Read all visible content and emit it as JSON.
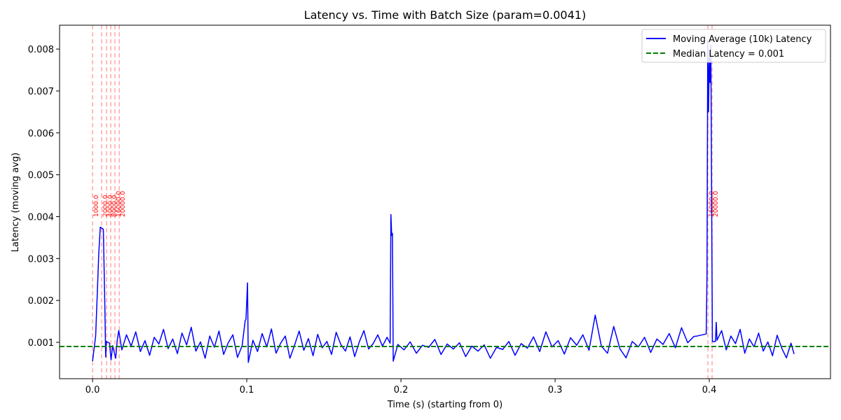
{
  "chart_data": {
    "type": "line",
    "title": "Latency vs. Time with Batch Size (param=0.0041)",
    "xlabel": "Time (s) (starting from 0)",
    "ylabel": "Latency (moving avg)",
    "xlim": [
      -0.0214,
      0.4786
    ],
    "ylim": [
      0.000132,
      0.00857
    ],
    "xticks": [
      {
        "value": 0,
        "label": "0.0"
      },
      0.1,
      0.2,
      0.3,
      0.4
    ],
    "yticks": [
      0.001,
      0.002,
      0.003,
      0.004,
      0.005,
      0.006,
      0.007,
      0.008
    ],
    "legend": "upper right",
    "x": [
      0,
      0.002,
      0.003,
      0.004,
      0.005,
      0.007,
      0.008,
      0.0085,
      0.009,
      0.011,
      0.012,
      0.013,
      0.015,
      0.016,
      0.017,
      0.019,
      0.022,
      0.025,
      0.028,
      0.031,
      0.034,
      0.037,
      0.04,
      0.043,
      0.046,
      0.049,
      0.052,
      0.055,
      0.058,
      0.061,
      0.064,
      0.067,
      0.07,
      0.073,
      0.076,
      0.079,
      0.082,
      0.085,
      0.088,
      0.091,
      0.094,
      0.097,
      0.099,
      0.0995,
      0.1005,
      0.101,
      0.104,
      0.107,
      0.11,
      0.113,
      0.116,
      0.119,
      0.122,
      0.125,
      0.128,
      0.131,
      0.134,
      0.137,
      0.14,
      0.143,
      0.146,
      0.149,
      0.152,
      0.155,
      0.158,
      0.161,
      0.164,
      0.167,
      0.17,
      0.173,
      0.176,
      0.179,
      0.182,
      0.185,
      0.188,
      0.191,
      0.193,
      0.1935,
      0.194,
      0.1945,
      0.195,
      0.198,
      0.202,
      0.206,
      0.21,
      0.214,
      0.218,
      0.222,
      0.226,
      0.23,
      0.234,
      0.238,
      0.242,
      0.246,
      0.25,
      0.254,
      0.258,
      0.262,
      0.266,
      0.27,
      0.274,
      0.278,
      0.282,
      0.286,
      0.29,
      0.294,
      0.298,
      0.302,
      0.306,
      0.31,
      0.314,
      0.318,
      0.322,
      0.326,
      0.33,
      0.334,
      0.338,
      0.342,
      0.346,
      0.35,
      0.354,
      0.358,
      0.362,
      0.366,
      0.37,
      0.374,
      0.378,
      0.382,
      0.386,
      0.39,
      0.392,
      0.398,
      0.3985,
      0.399,
      0.3995,
      0.4,
      0.4005,
      0.401,
      0.4015,
      0.402,
      0.404,
      0.4045,
      0.405,
      0.408,
      0.411,
      0.414,
      0.417,
      0.42,
      0.423,
      0.426,
      0.429,
      0.432,
      0.435,
      0.438,
      0.441,
      0.444,
      0.447,
      0.45,
      0.453,
      0.455
    ],
    "series": [
      {
        "name": "Moving Average (10k) Latency",
        "color": "blue",
        "values": [
          0.00055,
          0.00115,
          0.0021,
          0.0031,
          0.00375,
          0.0037,
          0.0018,
          0.00065,
          0.00102,
          0.00098,
          0.00058,
          0.00092,
          0.00062,
          0.00105,
          0.00128,
          0.00082,
          0.00118,
          0.00091,
          0.00125,
          0.00078,
          0.00104,
          0.00069,
          0.00112,
          0.00096,
          0.00131,
          0.00085,
          0.00108,
          0.00073,
          0.00122,
          0.00094,
          0.00136,
          0.00079,
          0.00101,
          0.00062,
          0.00115,
          0.00088,
          0.00127,
          0.00071,
          0.00099,
          0.00118,
          0.00064,
          0.00092,
          0.00152,
          0.00155,
          0.00242,
          0.00052,
          0.00105,
          0.00078,
          0.00121,
          0.00089,
          0.00132,
          0.00074,
          0.00098,
          0.00115,
          0.00062,
          0.00093,
          0.00127,
          0.00081,
          0.00109,
          0.00068,
          0.00119,
          0.00087,
          0.00102,
          0.00071,
          0.00124,
          0.00095,
          0.00079,
          0.00113,
          0.00066,
          0.00101,
          0.00128,
          0.00084,
          0.00097,
          0.00118,
          0.00091,
          0.00112,
          0.00098,
          0.00405,
          0.00355,
          0.0036,
          0.00055,
          0.00095,
          0.00082,
          0.00101,
          0.00074,
          0.00093,
          0.00088,
          0.00107,
          0.00071,
          0.00096,
          0.00084,
          0.00099,
          0.00066,
          0.00091,
          0.00079,
          0.00094,
          0.00062,
          0.00088,
          0.00083,
          0.00102,
          0.00069,
          0.00097,
          0.00086,
          0.00113,
          0.00078,
          0.00125,
          0.00089,
          0.00104,
          0.00072,
          0.00111,
          0.00093,
          0.00118,
          0.00081,
          0.00165,
          0.00091,
          0.00074,
          0.00138,
          0.00085,
          0.00063,
          0.00102,
          0.00089,
          0.00112,
          0.00076,
          0.00108,
          0.00095,
          0.00121,
          0.00087,
          0.00135,
          0.00099,
          0.00114,
          0.00115,
          0.0012,
          0.0026,
          0.0082,
          0.0065,
          0.0078,
          0.0072,
          0.0081,
          0.0045,
          0.00102,
          0.00102,
          0.00148,
          0.00105,
          0.00128,
          0.00082,
          0.00115,
          0.00097,
          0.00131,
          0.00074,
          0.00108,
          0.00089,
          0.00122,
          0.00079,
          0.00101,
          0.00068,
          0.00117,
          0.00086,
          0.00063,
          0.00098,
          0.00072
        ]
      }
    ],
    "median_line": {
      "value": 0.0009,
      "label": "Median Latency = 0.001",
      "color": "green"
    },
    "batch_line_color": "red",
    "batch_changes": [
      {
        "x": 0,
        "label": "1000.0"
      },
      {
        "x": 0.0059,
        "label": "2000.0"
      },
      {
        "x": 0.0091,
        "label": "4000.0"
      },
      {
        "x": 0.0118,
        "label": "8000.0"
      },
      {
        "x": 0.0145,
        "label": "16000.0"
      },
      {
        "x": 0.0173,
        "label": "20000.0"
      },
      {
        "x": 0.3991,
        "label": "16000.0"
      },
      {
        "x": 0.4018,
        "label": "20000.0"
      }
    ]
  }
}
